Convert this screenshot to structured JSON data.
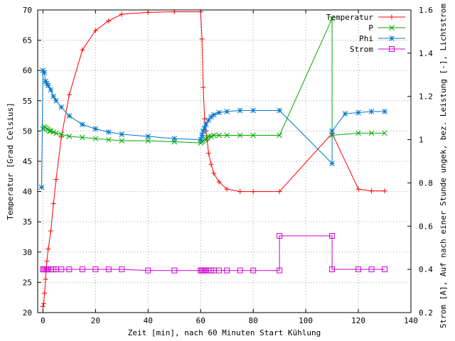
{
  "chart_data": {
    "type": "line",
    "xlabel": "Zeit [min], nach 60 Minuten Start Kühlung",
    "ylabel": "Temperatur [Grad Celsius]",
    "y2label": "Strom [A], Auf nach einer Stunde ungek, bez. Leistung [-], Lichtstrom P",
    "xlim": [
      -2,
      140
    ],
    "ylim": [
      20,
      70
    ],
    "y2lim": [
      0.2,
      1.6
    ],
    "xticks": [
      "0",
      "20",
      "40",
      "60",
      "80",
      "100",
      "120",
      "140"
    ],
    "xtick_values": [
      0,
      20,
      40,
      60,
      80,
      100,
      120,
      140
    ],
    "yticks": [
      "20",
      "25",
      "30",
      "35",
      "40",
      "45",
      "50",
      "55",
      "60",
      "65",
      "70"
    ],
    "ytick_values": [
      20,
      25,
      30,
      35,
      40,
      45,
      50,
      55,
      60,
      65,
      70
    ],
    "y2ticks": [
      "0.2",
      "0.4",
      "0.6",
      "0.8",
      "1",
      "1.2",
      "1.4",
      "1.6"
    ],
    "y2tick_values": [
      0.2,
      0.4,
      0.6,
      0.8,
      1.0,
      1.2,
      1.4,
      1.6
    ],
    "grid": true,
    "legend_position": "top-right",
    "series": [
      {
        "name": "Temperatur",
        "axis": "left",
        "color": "#ff0000",
        "marker": "plus",
        "x": [
          0,
          0.3,
          0.6,
          1,
          1.5,
          2,
          3,
          4,
          5,
          7,
          10,
          15,
          20,
          25,
          30,
          40,
          50,
          60,
          60.5,
          61,
          61.5,
          62,
          62.5,
          63,
          64,
          65,
          67,
          70,
          75,
          80,
          90,
          110,
          120,
          125,
          130
        ],
        "y": [
          21,
          21.5,
          23.2,
          25.5,
          28.5,
          30.5,
          33.5,
          38,
          42,
          49,
          56,
          63.4,
          66.6,
          68.2,
          69.3,
          69.6,
          69.7,
          69.7,
          65.2,
          57.2,
          52,
          50,
          48.5,
          46.3,
          44.5,
          43,
          41.6,
          40.4,
          40,
          40,
          40,
          49.6,
          40.4,
          40.1,
          40.1
        ]
      },
      {
        "name": "P",
        "axis": "right",
        "color": "#00aa00",
        "marker": "x",
        "x": [
          0,
          0.5,
          1,
          1.5,
          2,
          2.5,
          3,
          4,
          5,
          7,
          10,
          15,
          20,
          25,
          30,
          40,
          50,
          60,
          60.5,
          61,
          61.5,
          62,
          62.5,
          63,
          64,
          65,
          67,
          70,
          75,
          80,
          90,
          110,
          110,
          120,
          125,
          130
        ],
        "y": [
          1.05,
          1.06,
          1.055,
          1.05,
          1.045,
          1.04,
          1.04,
          1.035,
          1.03,
          1.025,
          1.015,
          1.01,
          1.005,
          1.0,
          0.995,
          0.995,
          0.99,
          0.985,
          0.99,
          0.995,
          1.0,
          1.005,
          1.01,
          1.015,
          1.015,
          1.02,
          1.02,
          1.02,
          1.02,
          1.02,
          1.02,
          1.56,
          1.02,
          1.03,
          1.03,
          1.03
        ]
      },
      {
        "name": "Phi",
        "axis": "right",
        "color": "#0077cc",
        "marker": "star",
        "x": [
          -0.5,
          0,
          0.5,
          1,
          1.5,
          2,
          3,
          4,
          5,
          7,
          10,
          15,
          20,
          25,
          30,
          40,
          50,
          60,
          60.5,
          61,
          61.5,
          62,
          63,
          64,
          65,
          67,
          70,
          75,
          80,
          90,
          110,
          110,
          115,
          120,
          125,
          130
        ],
        "y": [
          0.78,
          1.32,
          1.31,
          1.27,
          1.26,
          1.25,
          1.23,
          1.2,
          1.18,
          1.15,
          1.11,
          1.07,
          1.05,
          1.035,
          1.025,
          1.015,
          1.005,
          1.0,
          1.02,
          1.04,
          1.055,
          1.07,
          1.09,
          1.105,
          1.115,
          1.125,
          1.13,
          1.135,
          1.135,
          1.135,
          0.89,
          1.04,
          1.12,
          1.125,
          1.13,
          1.13
        ]
      },
      {
        "name": "Strom",
        "axis": "right",
        "color": "#cc00cc",
        "marker": "square",
        "x": [
          0,
          0.5,
          1,
          1.5,
          2,
          3,
          4,
          5,
          7,
          10,
          15,
          20,
          25,
          30,
          40,
          50,
          60,
          60.5,
          61,
          61.5,
          62,
          63,
          64,
          65,
          67,
          70,
          75,
          80,
          90,
          90,
          110,
          110,
          120,
          125,
          130
        ],
        "y": [
          0.4,
          0.4,
          0.4,
          0.4,
          0.4,
          0.4,
          0.4,
          0.4,
          0.4,
          0.4,
          0.4,
          0.4,
          0.4,
          0.4,
          0.395,
          0.395,
          0.395,
          0.395,
          0.395,
          0.395,
          0.395,
          0.395,
          0.395,
          0.395,
          0.395,
          0.395,
          0.395,
          0.395,
          0.395,
          0.555,
          0.555,
          0.4,
          0.4,
          0.4,
          0.4
        ]
      }
    ]
  }
}
